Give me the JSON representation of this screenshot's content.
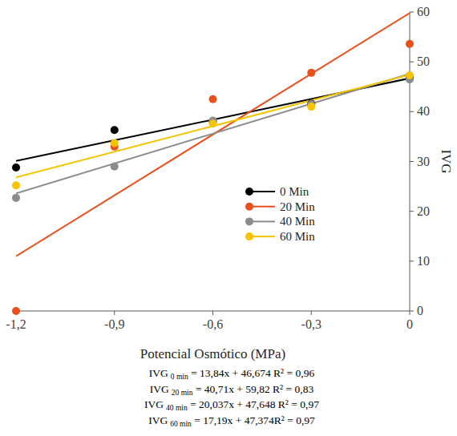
{
  "chart_data": {
    "type": "scatter",
    "x_label": "Potencial Osmótico (MPa)",
    "y_label": "IVG",
    "x": [
      -1.2,
      -0.9,
      -0.6,
      -0.3,
      0
    ],
    "xlim": [
      -1.2,
      0
    ],
    "xticks": [
      {
        "value": -1.2,
        "label": "-1,2"
      },
      {
        "value": -0.9,
        "label": "-0,9"
      },
      {
        "value": -0.6,
        "label": "-0,6"
      },
      {
        "value": -0.3,
        "label": "-0,3"
      },
      0
    ],
    "ylim": [
      0,
      60
    ],
    "yticks": [
      0,
      10,
      20,
      30,
      40,
      50,
      60
    ],
    "grid": false,
    "legend": "right",
    "marker": "circle",
    "series": [
      {
        "name": "0 Min",
        "color": "#000000",
        "values": [
          28.8,
          36.3,
          38.0,
          41.6,
          46.8
        ],
        "trend": [
          30.1,
          46.7
        ]
      },
      {
        "name": "20 Min",
        "color": "#e8501e",
        "values": [
          0,
          33.0,
          42.5,
          47.8,
          53.6
        ],
        "trend": [
          11.0,
          59.8
        ]
      },
      {
        "name": "40 Min",
        "color": "#8c8c8c",
        "values": [
          22.7,
          29.0,
          38.2,
          41.5,
          46.5
        ],
        "trend": [
          23.6,
          47.6
        ]
      },
      {
        "name": "60 Min",
        "color": "#f5c400",
        "values": [
          25.2,
          33.7,
          37.6,
          41.0,
          47.3
        ],
        "trend": [
          26.8,
          47.4
        ]
      }
    ],
    "annotations": [
      {
        "base": "IVG",
        "sub": "0 min",
        "text": " = 13,84x + 46,674 R² = 0,96"
      },
      {
        "base": "IVG",
        "sub": "20 min",
        "text": " = 40,71x + 59,82 R² = 0,83"
      },
      {
        "base": "IVG",
        "sub": "40 min",
        "text": " = 20,037x + 47,648 R² = 0,97"
      },
      {
        "base": "IVG",
        "sub": "60 min",
        "text": " = 17,19x + 47,374R² = 0,97"
      }
    ]
  }
}
